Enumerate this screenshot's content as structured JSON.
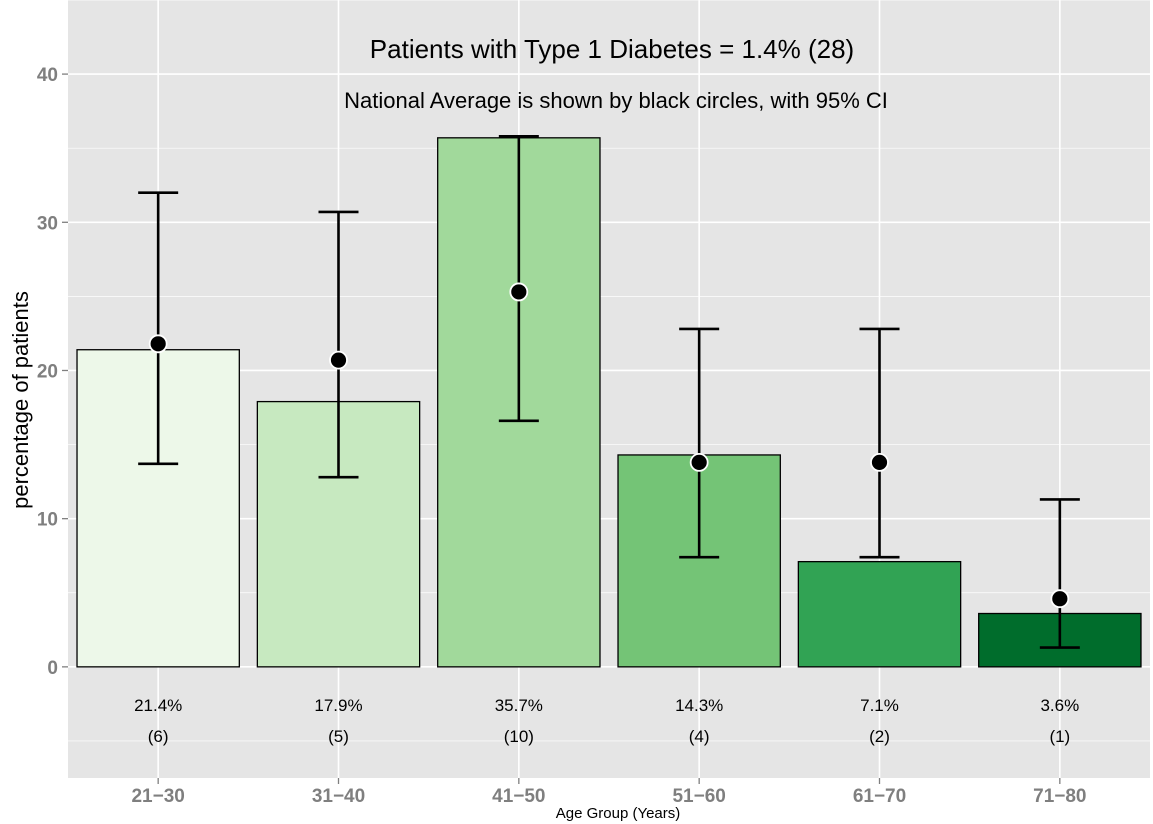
{
  "chart_data": {
    "type": "bar",
    "title": "Patients with Type 1 Diabetes = 1.4% (28)",
    "subtitle": "National Average is shown by black circles, with 95% CI",
    "xlabel": "Age Group (Years)",
    "ylabel": "percentage of patients",
    "ylim": [
      -7.5,
      45
    ],
    "yticks": [
      0,
      10,
      20,
      30,
      40
    ],
    "grid": true,
    "categories": [
      "21−30",
      "31−40",
      "41−50",
      "51−60",
      "61−70",
      "71−80"
    ],
    "values": [
      21.4,
      17.9,
      35.7,
      14.3,
      7.1,
      3.6
    ],
    "counts": [
      6,
      5,
      10,
      4,
      2,
      1
    ],
    "value_labels": [
      "21.4%",
      "17.9%",
      "35.7%",
      "14.3%",
      "7.1%",
      "3.6%"
    ],
    "count_labels": [
      "(6)",
      "(5)",
      "(10)",
      "(4)",
      "(2)",
      "(1)"
    ],
    "bar_colors": [
      "#edf8e9",
      "#c7e9c0",
      "#a1d99b",
      "#74c476",
      "#31a354",
      "#006d2c"
    ],
    "national_average": [
      21.8,
      20.7,
      25.3,
      13.8,
      13.8,
      4.6
    ],
    "ci_lower": [
      13.7,
      12.8,
      16.6,
      7.4,
      7.4,
      1.3
    ],
    "ci_upper": [
      32.0,
      30.7,
      35.8,
      22.8,
      22.8,
      11.3
    ],
    "colors": {
      "panel": "#e5e5e5",
      "grid": "#ffffff",
      "axis_text": "#7f7f7f",
      "marker": "#000000"
    }
  }
}
